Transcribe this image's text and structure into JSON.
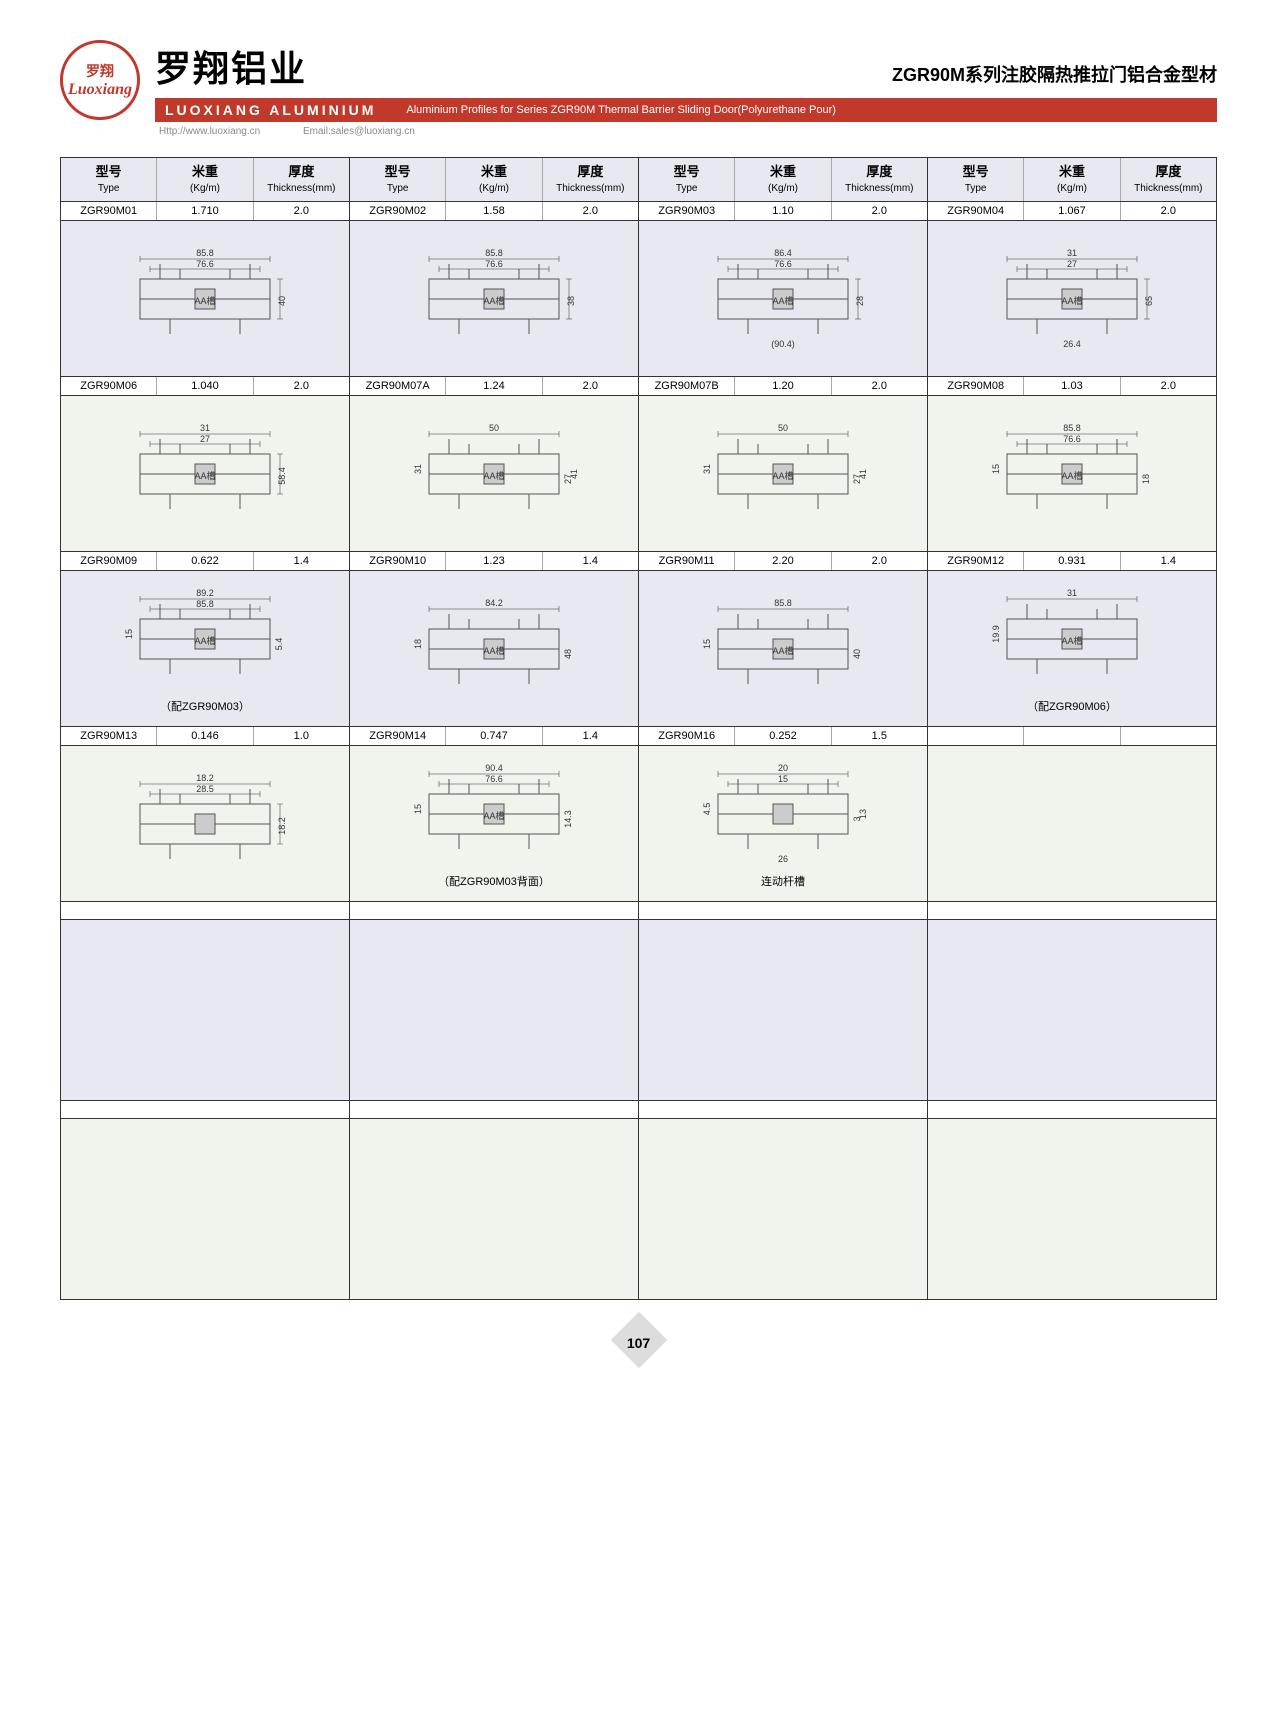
{
  "header": {
    "logo_cn": "罗翔",
    "logo_en": "Luoxiang",
    "cn_title": "罗翔铝业",
    "series_title": "ZGR90M系列注胶隔热推拉门铝合金型材",
    "brand_bar": "LUOXIANG ALUMINIUM",
    "bar_desc": "Aluminium Profiles for Series ZGR90M Thermal Barrier Sliding Door(Polyurethane Pour)",
    "url": "Http://www.luoxiang.cn",
    "email": "Email:sales@luoxiang.cn"
  },
  "columns": {
    "type_cn": "型号",
    "type_en": "Type",
    "weight_cn": "米重",
    "weight_en": "(Kg/m)",
    "thick_cn": "厚度",
    "thick_en": "Thickness(mm)"
  },
  "rows": [
    {
      "bg": "norm",
      "cells": [
        {
          "type": "ZGR90M01",
          "weight": "1.710",
          "thick": "2.0",
          "dims": {
            "w1": "85.8",
            "w2": "76.6",
            "h": "40"
          },
          "label": "AA槽"
        },
        {
          "type": "ZGR90M02",
          "weight": "1.58",
          "thick": "2.0",
          "dims": {
            "w1": "85.8",
            "w2": "76.6",
            "h": "38"
          },
          "label": "AA槽"
        },
        {
          "type": "ZGR90M03",
          "weight": "1.10",
          "thick": "2.0",
          "dims": {
            "w1": "86.4",
            "w2": "76.6",
            "w3": "(90.4)",
            "h": "28"
          },
          "label": "AA槽"
        },
        {
          "type": "ZGR90M04",
          "weight": "1.067",
          "thick": "2.0",
          "dims": {
            "w1": "31",
            "w2": "27",
            "w3": "26.4",
            "h": "65"
          },
          "label": "AA槽"
        }
      ]
    },
    {
      "bg": "alt",
      "cells": [
        {
          "type": "ZGR90M06",
          "weight": "1.040",
          "thick": "2.0",
          "dims": {
            "w1": "31",
            "w2": "27",
            "h": "58.4"
          },
          "label": "AA槽"
        },
        {
          "type": "ZGR90M07A",
          "weight": "1.24",
          "thick": "2.0",
          "dims": {
            "w1": "50",
            "h1": "31",
            "h2": "27",
            "h3": "41"
          },
          "label": "AA槽"
        },
        {
          "type": "ZGR90M07B",
          "weight": "1.20",
          "thick": "2.0",
          "dims": {
            "w1": "50",
            "h1": "31",
            "h2": "27",
            "h3": "41"
          },
          "label": "AA槽"
        },
        {
          "type": "ZGR90M08",
          "weight": "1.03",
          "thick": "2.0",
          "dims": {
            "w1": "85.8",
            "w2": "76.6",
            "h1": "15",
            "h2": "18"
          },
          "label": "AA槽"
        }
      ]
    },
    {
      "bg": "norm",
      "cells": [
        {
          "type": "ZGR90M09",
          "weight": "0.622",
          "thick": "1.4",
          "dims": {
            "w1": "89.2",
            "w2": "85.8",
            "h1": "15",
            "h2": "5.4"
          },
          "label": "AA槽",
          "note": "（配ZGR90M03）"
        },
        {
          "type": "ZGR90M10",
          "weight": "1.23",
          "thick": "1.4",
          "dims": {
            "w1": "84.2",
            "h1": "18",
            "h2": "48"
          },
          "label": "AA槽"
        },
        {
          "type": "ZGR90M11",
          "weight": "2.20",
          "thick": "2.0",
          "dims": {
            "w1": "85.8",
            "h1": "15",
            "h2": "40"
          },
          "label": "AA槽"
        },
        {
          "type": "ZGR90M12",
          "weight": "0.931",
          "thick": "1.4",
          "dims": {
            "w1": "31",
            "h1": "19.9"
          },
          "label": "AA槽",
          "note": "（配ZGR90M06）"
        }
      ]
    },
    {
      "bg": "alt",
      "cells": [
        {
          "type": "ZGR90M13",
          "weight": "0.146",
          "thick": "1.0",
          "dims": {
            "w1": "18.2",
            "w2": "28.5",
            "h": "18.2"
          }
        },
        {
          "type": "ZGR90M14",
          "weight": "0.747",
          "thick": "1.4",
          "dims": {
            "w1": "90.4",
            "w2": "76.6",
            "h1": "15",
            "h2": "14.3"
          },
          "label": "AA槽",
          "note": "（配ZGR90M03背面）"
        },
        {
          "type": "ZGR90M16",
          "weight": "0.252",
          "thick": "1.5",
          "dims": {
            "w1": "20",
            "w2": "15",
            "w3": "26",
            "h1": "4.5",
            "h2": "3",
            "h3": "13"
          },
          "note": "连动杆槽"
        },
        {
          "type": "",
          "weight": "",
          "thick": ""
        }
      ]
    },
    {
      "bg": "norm",
      "cells": [
        {
          "type": "",
          "weight": "",
          "thick": ""
        },
        {
          "type": "",
          "weight": "",
          "thick": ""
        },
        {
          "type": "",
          "weight": "",
          "thick": ""
        },
        {
          "type": "",
          "weight": "",
          "thick": ""
        }
      ],
      "empty": true
    },
    {
      "bg": "alt",
      "cells": [
        {
          "type": "",
          "weight": "",
          "thick": ""
        },
        {
          "type": "",
          "weight": "",
          "thick": ""
        },
        {
          "type": "",
          "weight": "",
          "thick": ""
        },
        {
          "type": "",
          "weight": "",
          "thick": ""
        }
      ],
      "empty": true
    }
  ],
  "page_number": "107",
  "colors": {
    "accent": "#c0392b",
    "grid": "#333333",
    "alt_bg": "#f0f4ec",
    "norm_bg": "#e8e8f0"
  }
}
